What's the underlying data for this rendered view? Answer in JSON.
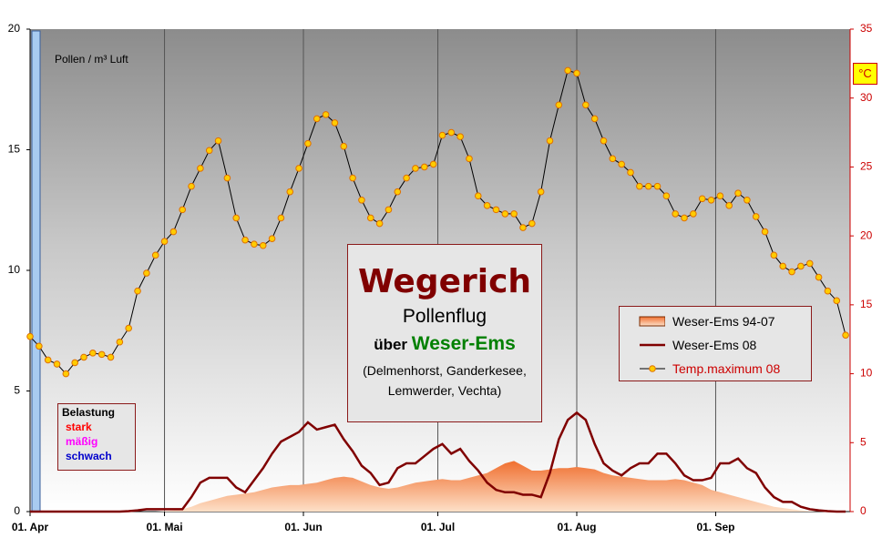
{
  "chart_data": {
    "type": "line",
    "title": "Wegerich",
    "subtitle": "Pollenflug",
    "region_prefix": "über",
    "region": "Weser-Ems",
    "stations": "(Delmenhorst, Ganderkesee, Lemwerder, Vechta)",
    "ylabel": "Pollen / m³ Luft",
    "y2label": "°C",
    "y2color": "#cc0000",
    "legend": "right",
    "grid": true,
    "load_legend": {
      "title": "Belastung",
      "levels": [
        {
          "label": "stark",
          "color": "#ff0000"
        },
        {
          "label": "mäßig",
          "color": "#ff00ff"
        },
        {
          "label": "schwach",
          "color": "#0000cc"
        }
      ]
    },
    "xlim": [
      0,
      183
    ],
    "xticks": [
      {
        "value": 0,
        "label": "01. Apr"
      },
      {
        "value": 30,
        "label": "01. Mai"
      },
      {
        "value": 61,
        "label": "01. Jun"
      },
      {
        "value": 91,
        "label": "01. Jul"
      },
      {
        "value": 122,
        "label": "01. Aug"
      },
      {
        "value": 153,
        "label": "01. Sep"
      }
    ],
    "ylim": [
      0,
      20
    ],
    "yticks": [
      0,
      5,
      10,
      15,
      20
    ],
    "y2lim": [
      0,
      35
    ],
    "y2ticks": [
      0,
      5,
      10,
      15,
      20,
      25,
      30,
      35
    ],
    "x": [
      0,
      2,
      4,
      6,
      8,
      10,
      12,
      14,
      16,
      18,
      20,
      22,
      24,
      26,
      28,
      30,
      32,
      34,
      36,
      38,
      40,
      42,
      44,
      46,
      48,
      50,
      52,
      54,
      56,
      58,
      60,
      62,
      64,
      66,
      68,
      70,
      72,
      74,
      76,
      78,
      80,
      82,
      84,
      86,
      88,
      90,
      92,
      94,
      96,
      98,
      100,
      102,
      104,
      106,
      108,
      110,
      112,
      114,
      116,
      118,
      120,
      122,
      124,
      126,
      128,
      130,
      132,
      134,
      136,
      138,
      140,
      142,
      144,
      146,
      148,
      150,
      152,
      154,
      156,
      158,
      160,
      162,
      164,
      166,
      168,
      170,
      172,
      174,
      176,
      178,
      180,
      182
    ],
    "series": [
      {
        "name": "Weser-Ems 94-07",
        "kind": "area",
        "color": "#f07030",
        "values": [
          0,
          0,
          0,
          0,
          0,
          0,
          0,
          0,
          0,
          0,
          0,
          0,
          0,
          0,
          0,
          0.02,
          0.05,
          0.1,
          0.2,
          0.35,
          0.45,
          0.55,
          0.65,
          0.7,
          0.75,
          0.8,
          0.9,
          1.0,
          1.05,
          1.1,
          1.1,
          1.15,
          1.2,
          1.3,
          1.4,
          1.45,
          1.4,
          1.25,
          1.1,
          1.0,
          0.95,
          1.0,
          1.1,
          1.2,
          1.25,
          1.3,
          1.35,
          1.3,
          1.3,
          1.4,
          1.5,
          1.6,
          1.8,
          2.0,
          2.1,
          1.9,
          1.7,
          1.7,
          1.75,
          1.8,
          1.8,
          1.85,
          1.8,
          1.75,
          1.6,
          1.5,
          1.45,
          1.4,
          1.35,
          1.3,
          1.3,
          1.3,
          1.35,
          1.3,
          1.2,
          1.1,
          0.9,
          0.8,
          0.7,
          0.6,
          0.5,
          0.4,
          0.3,
          0.2,
          0.15,
          0.1,
          0.05,
          0.02,
          0,
          0,
          0,
          0
        ]
      },
      {
        "name": "Weser-Ems 08",
        "kind": "line",
        "color": "#800000",
        "values": [
          0,
          0,
          0,
          0,
          0,
          0,
          0,
          0,
          0,
          0,
          0,
          0.02,
          0.05,
          0.1,
          0.1,
          0.1,
          0.1,
          0.1,
          0.6,
          1.2,
          1.4,
          1.4,
          1.4,
          1.0,
          0.8,
          1.3,
          1.8,
          2.4,
          2.9,
          3.1,
          3.3,
          3.7,
          3.4,
          3.5,
          3.6,
          3.0,
          2.5,
          1.9,
          1.6,
          1.1,
          1.2,
          1.8,
          2.0,
          2.0,
          2.3,
          2.6,
          2.8,
          2.4,
          2.6,
          2.1,
          1.7,
          1.2,
          0.9,
          0.8,
          0.8,
          0.7,
          0.7,
          0.6,
          1.6,
          3.0,
          3.8,
          4.1,
          3.8,
          2.8,
          2.0,
          1.7,
          1.5,
          1.8,
          2.0,
          2.0,
          2.4,
          2.4,
          2.0,
          1.5,
          1.3,
          1.3,
          1.4,
          2.0,
          2.0,
          2.2,
          1.8,
          1.6,
          1.0,
          0.6,
          0.4,
          0.4,
          0.2,
          0.1,
          0.05,
          0.02,
          0,
          0
        ]
      },
      {
        "name": "Temp.maximum 08",
        "kind": "marker-line",
        "axis": "y2",
        "color": "#ffcc00",
        "values": [
          12.7,
          12.0,
          11.0,
          10.7,
          10.0,
          10.8,
          11.2,
          11.5,
          11.4,
          11.2,
          12.3,
          13.3,
          16,
          17.3,
          18.6,
          19.6,
          20.3,
          21.9,
          23.6,
          24.9,
          26.2,
          26.9,
          24.2,
          21.3,
          19.7,
          19.4,
          19.3,
          19.8,
          21.3,
          23.2,
          24.9,
          26.7,
          28.5,
          28.8,
          28.2,
          26.5,
          24.2,
          22.6,
          21.3,
          20.9,
          21.9,
          23.2,
          24.2,
          24.9,
          25.0,
          25.2,
          27.3,
          27.5,
          27.2,
          25.6,
          22.9,
          22.2,
          21.9,
          21.6,
          21.6,
          20.6,
          20.9,
          23.2,
          26.9,
          29.5,
          32.0,
          31.8,
          29.5,
          28.5,
          26.9,
          25.6,
          25.2,
          24.6,
          23.6,
          23.6,
          23.6,
          22.9,
          21.6,
          21.3,
          21.6,
          22.7,
          22.6,
          22.9,
          22.2,
          23.1,
          22.6,
          21.4,
          20.3,
          18.6,
          17.8,
          17.4,
          17.8,
          18.0,
          17.0,
          16.0,
          15.3,
          12.8
        ]
      }
    ]
  }
}
